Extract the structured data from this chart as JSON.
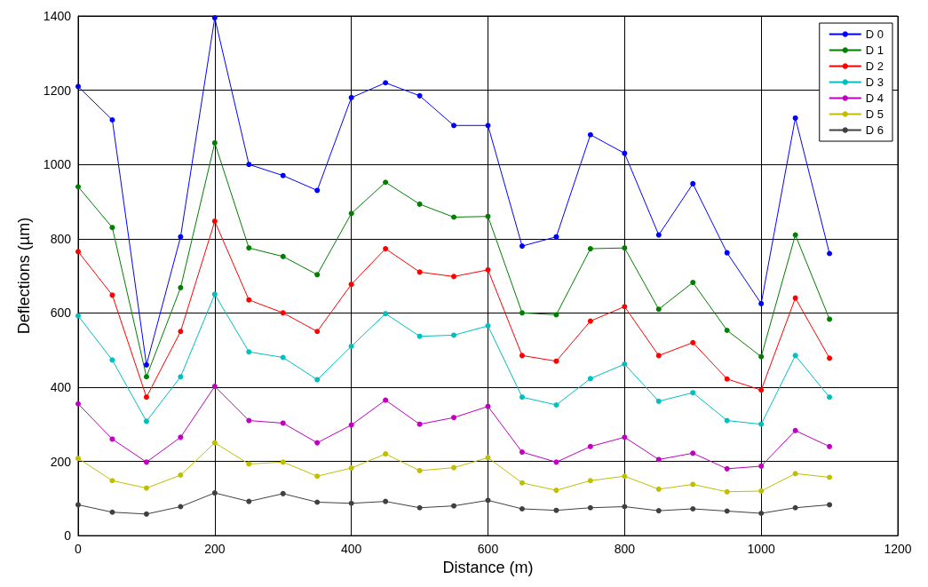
{
  "chart_data": {
    "type": "line",
    "xlabel": "Distance (m)",
    "ylabel": "Deflections (µm)",
    "x": [
      0,
      50,
      100,
      150,
      200,
      250,
      300,
      350,
      400,
      450,
      500,
      550,
      600,
      650,
      700,
      750,
      800,
      850,
      900,
      950,
      1000,
      1050,
      1100
    ],
    "xlim": [
      0,
      1200
    ],
    "xticks": [
      0,
      200,
      400,
      600,
      800,
      1000,
      1200
    ],
    "ylim": [
      0,
      1400
    ],
    "yticks": [
      0,
      200,
      400,
      600,
      800,
      1000,
      1200,
      1400
    ],
    "grid": true,
    "legend": "top right",
    "marker": "circle",
    "line_style": "solid",
    "series": [
      {
        "name": "D 0",
        "color": "#0000ff",
        "values": [
          1210,
          1120,
          460,
          805,
          1395,
          1000,
          970,
          930,
          1180,
          1220,
          1185,
          1105,
          1105,
          780,
          805,
          1080,
          1030,
          810,
          948,
          762,
          625,
          1125,
          760
        ]
      },
      {
        "name": "D 1",
        "color": "#007f00",
        "values": [
          940,
          830,
          428,
          668,
          1058,
          775,
          752,
          703,
          868,
          952,
          893,
          858,
          860,
          600,
          595,
          773,
          775,
          610,
          682,
          553,
          482,
          810,
          583
        ]
      },
      {
        "name": "D 2",
        "color": "#ff0000",
        "values": [
          765,
          648,
          373,
          550,
          847,
          635,
          600,
          550,
          677,
          773,
          710,
          698,
          716,
          485,
          470,
          578,
          617,
          485,
          520,
          422,
          392,
          640,
          478
        ]
      },
      {
        "name": "D 3",
        "color": "#00bfbf",
        "values": [
          592,
          473,
          308,
          428,
          650,
          495,
          480,
          420,
          510,
          598,
          537,
          540,
          565,
          373,
          352,
          423,
          462,
          362,
          385,
          310,
          300,
          485,
          373
        ]
      },
      {
        "name": "D 4",
        "color": "#bf00bf",
        "values": [
          355,
          260,
          198,
          265,
          402,
          310,
          303,
          250,
          298,
          365,
          300,
          318,
          348,
          225,
          198,
          240,
          265,
          205,
          222,
          180,
          187,
          283,
          240
        ]
      },
      {
        "name": "D 5",
        "color": "#bfbf00",
        "values": [
          208,
          148,
          128,
          163,
          250,
          193,
          198,
          160,
          182,
          220,
          175,
          183,
          210,
          142,
          122,
          148,
          160,
          125,
          138,
          118,
          120,
          167,
          157
        ]
      },
      {
        "name": "D 6",
        "color": "#404040",
        "values": [
          83,
          63,
          58,
          78,
          115,
          92,
          113,
          90,
          87,
          92,
          75,
          80,
          95,
          72,
          68,
          75,
          78,
          67,
          72,
          66,
          60,
          75,
          83
        ]
      }
    ]
  }
}
